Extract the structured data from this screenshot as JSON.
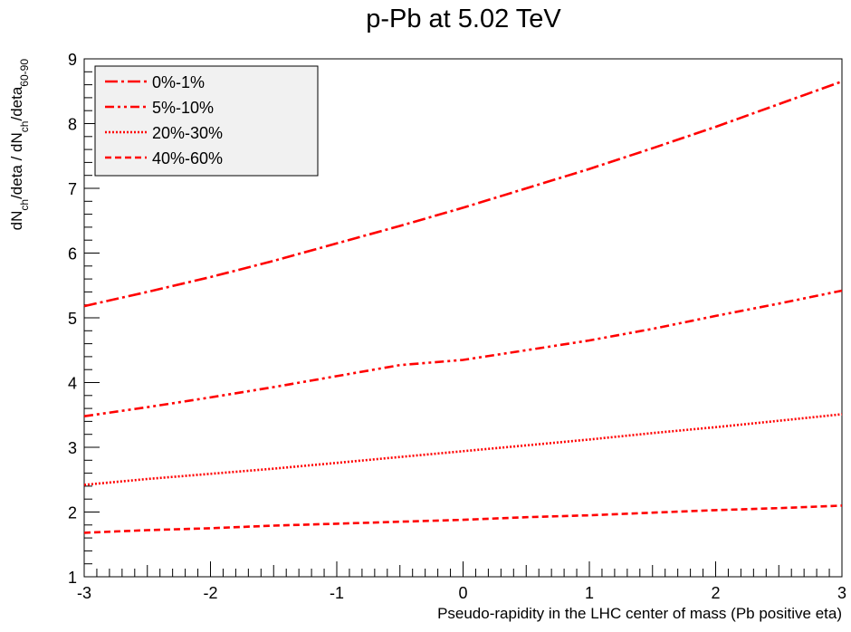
{
  "chart_data": {
    "type": "line",
    "title": "p-Pb at 5.02 TeV",
    "xlabel": "Pseudo-rapidity in the LHC center of mass (Pb positive eta)",
    "ylabel": {
      "parts": [
        {
          "t": "dN"
        },
        {
          "t": "ch",
          "sub": true
        },
        {
          "t": "/deta / dN"
        },
        {
          "t": "ch",
          "sub": true
        },
        {
          "t": "/deta"
        },
        {
          "t": "60-90",
          "sub": true
        }
      ]
    },
    "xlim": [
      -3,
      3
    ],
    "ylim": [
      1,
      9
    ],
    "x_ticks": [
      -3,
      -2,
      -1,
      0,
      1,
      2,
      3
    ],
    "x_tick_labels": [
      "-3",
      "-2",
      "-1",
      "0",
      "1",
      "2",
      "3"
    ],
    "y_ticks": [
      1,
      2,
      3,
      4,
      5,
      6,
      7,
      8,
      9
    ],
    "y_tick_labels": [
      "1",
      "2",
      "3",
      "4",
      "5",
      "6",
      "7",
      "8",
      "9"
    ],
    "grid": false,
    "legend_position": "top-left",
    "color": "#ff0000",
    "x": [
      -3,
      -2.5,
      -2,
      -1.5,
      -1,
      -0.5,
      0,
      0.5,
      1,
      1.5,
      2,
      2.5,
      3
    ],
    "series": [
      {
        "name": "0%-1%",
        "dash": "dash-dot",
        "values": [
          5.18,
          5.4,
          5.63,
          5.88,
          6.15,
          6.42,
          6.7,
          7.0,
          7.3,
          7.62,
          7.95,
          8.3,
          8.65
        ]
      },
      {
        "name": "5%-10%",
        "dash": "dash-dot-dot",
        "values": [
          3.48,
          3.62,
          3.77,
          3.93,
          4.1,
          4.27,
          4.35,
          4.5,
          4.65,
          4.83,
          5.03,
          5.22,
          5.42
        ]
      },
      {
        "name": "20%-30%",
        "dash": "dotted",
        "values": [
          2.42,
          2.51,
          2.59,
          2.67,
          2.76,
          2.85,
          2.94,
          3.03,
          3.12,
          3.22,
          3.31,
          3.41,
          3.51
        ]
      },
      {
        "name": "40%-60%",
        "dash": "dashed",
        "values": [
          1.68,
          1.72,
          1.75,
          1.79,
          1.82,
          1.85,
          1.88,
          1.92,
          1.95,
          1.99,
          2.03,
          2.06,
          2.1
        ]
      }
    ]
  }
}
